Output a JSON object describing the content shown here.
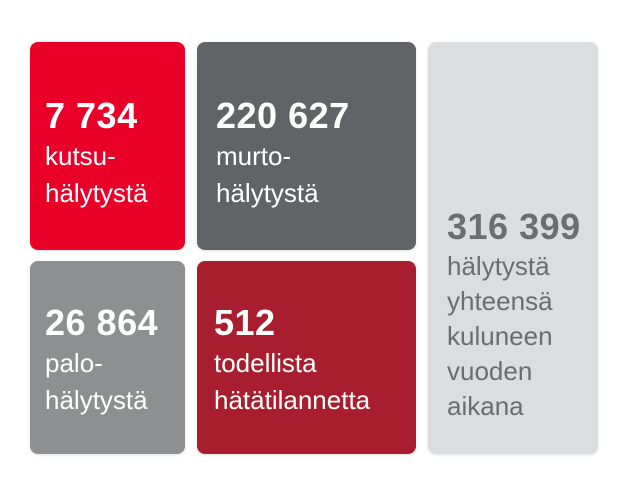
{
  "background_color": "#ffffff",
  "tiles": [
    {
      "id": "kutsu",
      "value": "7 734",
      "label_lines": [
        "kutsu-",
        "hälytystä"
      ],
      "bg": "#e90029",
      "fg": "#ffffff"
    },
    {
      "id": "murto",
      "value": "220 627",
      "label_lines": [
        "murto-",
        "hälytystä"
      ],
      "bg": "#626366",
      "fg": "#ffffff"
    },
    {
      "id": "palo",
      "value": "26 864",
      "label_lines": [
        "palo-",
        "hälytystä"
      ],
      "bg": "#8e8f91",
      "fg": "#ffffff"
    },
    {
      "id": "hata",
      "value": "512",
      "label_lines": [
        "todellista",
        "hätätilannetta"
      ],
      "bg": "#a91e2e",
      "fg": "#ffffff"
    },
    {
      "id": "total",
      "value": "316 399",
      "label_lines": [
        "hälytystä",
        "yhteensä",
        "kuluneen",
        "vuoden",
        "aikana"
      ],
      "bg": "#dcddde",
      "fg": "#6c6d70"
    }
  ],
  "chart_data": {
    "type": "table",
    "title": "",
    "items": [
      {
        "label": "kutsuhälytystä",
        "value": 7734
      },
      {
        "label": "murtohälytystä",
        "value": 220627
      },
      {
        "label": "palohälytystä",
        "value": 26864
      },
      {
        "label": "todellista hätätilannetta",
        "value": 512
      },
      {
        "label": "hälytystä yhteensä kuluneen vuoden aikana",
        "value": 316399
      }
    ]
  }
}
